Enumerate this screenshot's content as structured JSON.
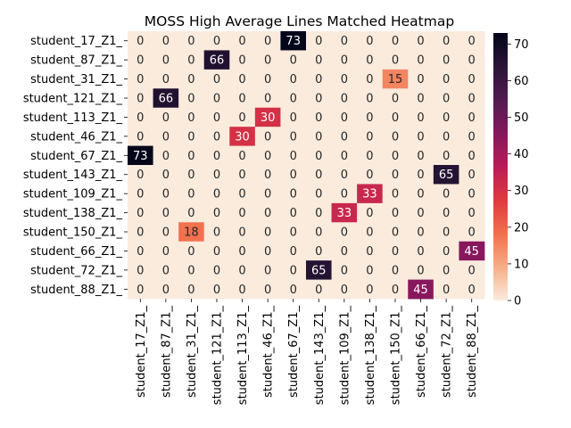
{
  "chart_data": {
    "type": "heatmap",
    "title": "MOSS High Average Lines Matched Heatmap",
    "xlabel": "",
    "ylabel": "",
    "rows": [
      "student_17_Z1_",
      "student_87_Z1_",
      "student_31_Z1_",
      "student_121_Z1_",
      "student_113_Z1_",
      "student_46_Z1_",
      "student_67_Z1_",
      "student_143_Z1_",
      "student_109_Z1_",
      "student_138_Z1_",
      "student_150_Z1_",
      "student_66_Z1_",
      "student_72_Z1_",
      "student_88_Z1_"
    ],
    "columns": [
      "student_17_Z1_",
      "student_87_Z1_",
      "student_31_Z1_",
      "student_121_Z1_",
      "student_113_Z1_",
      "student_46_Z1_",
      "student_67_Z1_",
      "student_143_Z1_",
      "student_109_Z1_",
      "student_138_Z1_",
      "student_150_Z1_",
      "student_66_Z1_",
      "student_72_Z1_",
      "student_88_Z1_"
    ],
    "values": [
      [
        0,
        0,
        0,
        0,
        0,
        0,
        73,
        0,
        0,
        0,
        0,
        0,
        0,
        0
      ],
      [
        0,
        0,
        0,
        66,
        0,
        0,
        0,
        0,
        0,
        0,
        0,
        0,
        0,
        0
      ],
      [
        0,
        0,
        0,
        0,
        0,
        0,
        0,
        0,
        0,
        0,
        15,
        0,
        0,
        0
      ],
      [
        0,
        66,
        0,
        0,
        0,
        0,
        0,
        0,
        0,
        0,
        0,
        0,
        0,
        0
      ],
      [
        0,
        0,
        0,
        0,
        0,
        30,
        0,
        0,
        0,
        0,
        0,
        0,
        0,
        0
      ],
      [
        0,
        0,
        0,
        0,
        30,
        0,
        0,
        0,
        0,
        0,
        0,
        0,
        0,
        0
      ],
      [
        73,
        0,
        0,
        0,
        0,
        0,
        0,
        0,
        0,
        0,
        0,
        0,
        0,
        0
      ],
      [
        0,
        0,
        0,
        0,
        0,
        0,
        0,
        0,
        0,
        0,
        0,
        0,
        65,
        0
      ],
      [
        0,
        0,
        0,
        0,
        0,
        0,
        0,
        0,
        0,
        33,
        0,
        0,
        0,
        0
      ],
      [
        0,
        0,
        0,
        0,
        0,
        0,
        0,
        0,
        33,
        0,
        0,
        0,
        0,
        0
      ],
      [
        0,
        0,
        18,
        0,
        0,
        0,
        0,
        0,
        0,
        0,
        0,
        0,
        0,
        0
      ],
      [
        0,
        0,
        0,
        0,
        0,
        0,
        0,
        0,
        0,
        0,
        0,
        0,
        0,
        45
      ],
      [
        0,
        0,
        0,
        0,
        0,
        0,
        0,
        65,
        0,
        0,
        0,
        0,
        0,
        0
      ],
      [
        0,
        0,
        0,
        0,
        0,
        0,
        0,
        0,
        0,
        0,
        0,
        45,
        0,
        0
      ]
    ],
    "colorbar": {
      "ticks": [
        0,
        10,
        20,
        30,
        40,
        50,
        60,
        70
      ],
      "range": [
        0,
        73
      ]
    },
    "colormap_stops": [
      "#faebdd",
      "#f6ad86",
      "#f26f4c",
      "#df3a3f",
      "#b91c56",
      "#84185d",
      "#531a50",
      "#2a1537",
      "#03051a"
    ]
  }
}
